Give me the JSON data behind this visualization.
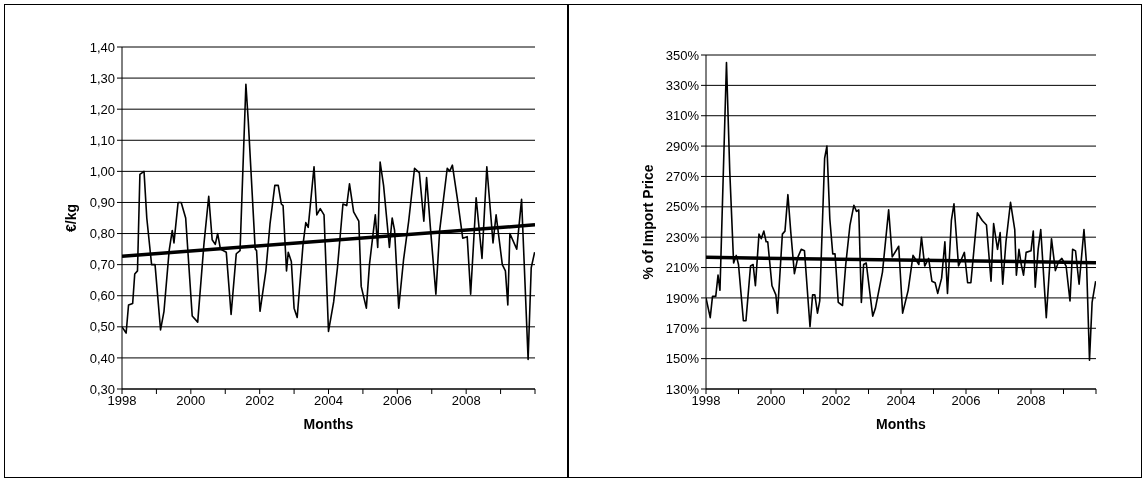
{
  "chart_data": [
    {
      "type": "line",
      "ylabel": "€/kg",
      "xlabel": "Months",
      "xlim": [
        1998,
        2010
      ],
      "xticks": [
        1998,
        {
          "value": 1999,
          "label": null
        },
        2000,
        {
          "value": 2001,
          "label": null
        },
        2002,
        {
          "value": 2003,
          "label": null
        },
        2004,
        {
          "value": 2005,
          "label": null
        },
        2006,
        {
          "value": 2007,
          "label": null
        },
        2008,
        {
          "value": 2009,
          "label": null
        },
        {
          "value": 2010,
          "label": null
        }
      ],
      "ylim": [
        0.3,
        1.4
      ],
      "yticks": [
        {
          "value": 0.3,
          "label": "0,30"
        },
        {
          "value": 0.4,
          "label": "0,40"
        },
        {
          "value": 0.5,
          "label": "0,50"
        },
        {
          "value": 0.6,
          "label": "0,60"
        },
        {
          "value": 0.7,
          "label": "0,70"
        },
        {
          "value": 0.8,
          "label": "0,80"
        },
        {
          "value": 0.9,
          "label": "0,90"
        },
        {
          "value": 1.0,
          "label": "1,00"
        },
        {
          "value": 1.1,
          "label": "1,10"
        },
        {
          "value": 1.2,
          "label": "1,20"
        },
        {
          "value": 1.3,
          "label": "1,30"
        },
        {
          "value": 1.4,
          "label": "1,40"
        }
      ],
      "grid": "y",
      "marker": "none",
      "line_style": "solid",
      "series": [
        {
          "color": "#000000",
          "x": [
            1998.0,
            1998.12,
            1998.19,
            1998.31,
            1998.37,
            1998.45,
            1998.52,
            1998.64,
            1998.72,
            1998.86,
            1998.96,
            1999.12,
            1999.22,
            1999.37,
            1999.46,
            1999.51,
            1999.63,
            1999.72,
            1999.85,
            2000.04,
            2000.2,
            2000.38,
            2000.52,
            2000.62,
            2000.71,
            2000.78,
            2000.86,
            2001.03,
            2001.17,
            2001.32,
            2001.43,
            2001.6,
            2001.67,
            2001.87,
            2001.91,
            2002.01,
            2002.18,
            2002.3,
            2002.44,
            2002.54,
            2002.63,
            2002.68,
            2002.78,
            2002.83,
            2002.92,
            2003.0,
            2003.09,
            2003.26,
            2003.34,
            2003.41,
            2003.58,
            2003.66,
            2003.76,
            2003.87,
            2004.0,
            2004.15,
            2004.26,
            2004.42,
            2004.53,
            2004.61,
            2004.73,
            2004.88,
            2004.95,
            2005.1,
            2005.19,
            2005.36,
            2005.43,
            2005.5,
            2005.6,
            2005.77,
            2005.85,
            2005.92,
            2006.04,
            2006.18,
            2006.33,
            2006.5,
            2006.64,
            2006.77,
            2006.85,
            2006.96,
            2007.12,
            2007.23,
            2007.45,
            2007.52,
            2007.6,
            2007.76,
            2007.9,
            2008.03,
            2008.13,
            2008.29,
            2008.46,
            2008.6,
            2008.78,
            2008.87,
            2009.05,
            2009.14,
            2009.21,
            2009.27,
            2009.47,
            2009.61,
            2009.8,
            2009.89,
            2009.99
          ],
          "values": [
            0.5,
            0.48,
            0.57,
            0.575,
            0.67,
            0.68,
            0.99,
            1.0,
            0.85,
            0.7,
            0.7,
            0.49,
            0.55,
            0.745,
            0.81,
            0.77,
            0.9,
            0.9,
            0.85,
            0.535,
            0.515,
            0.765,
            0.92,
            0.78,
            0.765,
            0.8,
            0.75,
            0.74,
            0.54,
            0.735,
            0.745,
            1.28,
            1.16,
            0.75,
            0.745,
            0.55,
            0.68,
            0.83,
            0.955,
            0.955,
            0.895,
            0.89,
            0.68,
            0.74,
            0.71,
            0.56,
            0.53,
            0.765,
            0.835,
            0.82,
            1.015,
            0.86,
            0.88,
            0.86,
            0.485,
            0.58,
            0.69,
            0.895,
            0.89,
            0.96,
            0.87,
            0.84,
            0.63,
            0.56,
            0.7,
            0.86,
            0.755,
            1.03,
            0.955,
            0.755,
            0.85,
            0.81,
            0.56,
            0.715,
            0.84,
            1.01,
            0.995,
            0.84,
            0.98,
            0.82,
            0.605,
            0.81,
            1.01,
            1.0,
            1.02,
            0.9,
            0.785,
            0.79,
            0.605,
            0.915,
            0.72,
            1.015,
            0.77,
            0.86,
            0.7,
            0.68,
            0.57,
            0.8,
            0.75,
            0.91,
            0.395,
            0.69,
            0.74
          ]
        },
        {
          "color": "#000000",
          "x": [
            1998,
            2010
          ],
          "values": [
            0.727,
            0.828
          ]
        }
      ]
    },
    {
      "type": "line",
      "ylabel": "% of Import Price",
      "xlabel": "Months",
      "xlim": [
        1998,
        2010
      ],
      "xticks": [
        1998,
        {
          "value": 1999,
          "label": null
        },
        2000,
        {
          "value": 2001,
          "label": null
        },
        2002,
        {
          "value": 2003,
          "label": null
        },
        2004,
        {
          "value": 2005,
          "label": null
        },
        2006,
        {
          "value": 2007,
          "label": null
        },
        2008,
        {
          "value": 2009,
          "label": null
        },
        {
          "value": 2010,
          "label": null
        }
      ],
      "ylim": [
        130,
        350
      ],
      "yticks": [
        {
          "value": 130,
          "label": "130%"
        },
        {
          "value": 150,
          "label": "150%"
        },
        {
          "value": 170,
          "label": "170%"
        },
        {
          "value": 190,
          "label": "190%"
        },
        {
          "value": 210,
          "label": "210%"
        },
        {
          "value": 230,
          "label": "230%"
        },
        {
          "value": 250,
          "label": "250%"
        },
        {
          "value": 270,
          "label": "270%"
        },
        {
          "value": 290,
          "label": "290%"
        },
        {
          "value": 310,
          "label": "310%"
        },
        {
          "value": 330,
          "label": "330%"
        },
        {
          "value": 350,
          "label": "350%"
        }
      ],
      "grid": "y",
      "marker": "none",
      "line_style": "solid",
      "series": [
        {
          "color": "#000000",
          "x": [
            1998.0,
            1998.13,
            1998.2,
            1998.3,
            1998.37,
            1998.43,
            1998.63,
            1998.73,
            1998.85,
            1998.93,
            1999.0,
            1999.15,
            1999.23,
            1999.37,
            1999.45,
            1999.52,
            1999.63,
            1999.7,
            1999.78,
            1999.85,
            1999.9,
            2000.03,
            2000.15,
            2000.2,
            2000.35,
            2000.43,
            2000.52,
            2000.61,
            2000.72,
            2000.83,
            2000.93,
            2001.03,
            2001.2,
            2001.28,
            2001.35,
            2001.43,
            2001.5,
            2001.65,
            2001.72,
            2001.81,
            2001.9,
            2001.97,
            2002.07,
            2002.2,
            2002.3,
            2002.43,
            2002.55,
            2002.63,
            2002.7,
            2002.78,
            2002.85,
            2002.93,
            2003.13,
            2003.21,
            2003.43,
            2003.62,
            2003.73,
            2003.93,
            2004.05,
            2004.22,
            2004.37,
            2004.55,
            2004.63,
            2004.73,
            2004.85,
            2004.95,
            2005.05,
            2005.13,
            2005.25,
            2005.35,
            2005.43,
            2005.55,
            2005.63,
            2005.77,
            2005.95,
            2006.05,
            2006.15,
            2006.35,
            2006.5,
            2006.63,
            2006.77,
            2006.85,
            2006.97,
            2007.05,
            2007.13,
            2007.23,
            2007.37,
            2007.5,
            2007.55,
            2007.63,
            2007.7,
            2007.77,
            2007.85,
            2008.0,
            2008.07,
            2008.13,
            2008.22,
            2008.3,
            2008.47,
            2008.63,
            2008.75,
            2008.85,
            2008.95,
            2009.08,
            2009.2,
            2009.28,
            2009.37,
            2009.48,
            2009.63,
            2009.71,
            2009.8,
            2009.88,
            2009.99
          ],
          "values": [
            190,
            177,
            191,
            191,
            205,
            195,
            345,
            274,
            213,
            218,
            212,
            175,
            175,
            211,
            212,
            198,
            232,
            229,
            234,
            227,
            227,
            198,
            192,
            180,
            232,
            234,
            258,
            233,
            206,
            217,
            222,
            221,
            171,
            192,
            192,
            180,
            188,
            282,
            290,
            242,
            219,
            219,
            187,
            185,
            212,
            238,
            251,
            247,
            248,
            187,
            212,
            213,
            178,
            183,
            207,
            248,
            217,
            224,
            180,
            195,
            218,
            212,
            230,
            211,
            216,
            201,
            200,
            193,
            203,
            227,
            193,
            241,
            252,
            211,
            220,
            200,
            200,
            246,
            241,
            238,
            201,
            239,
            222,
            233,
            199,
            227,
            253,
            235,
            205,
            222,
            212,
            205,
            220,
            221,
            234,
            197,
            222,
            235,
            177,
            229,
            208,
            214,
            216,
            211,
            188,
            222,
            221,
            199,
            235,
            212,
            149,
            187,
            201
          ]
        },
        {
          "color": "#000000",
          "x": [
            1998,
            2010
          ],
          "values": [
            216.7,
            213.2
          ]
        }
      ]
    }
  ]
}
